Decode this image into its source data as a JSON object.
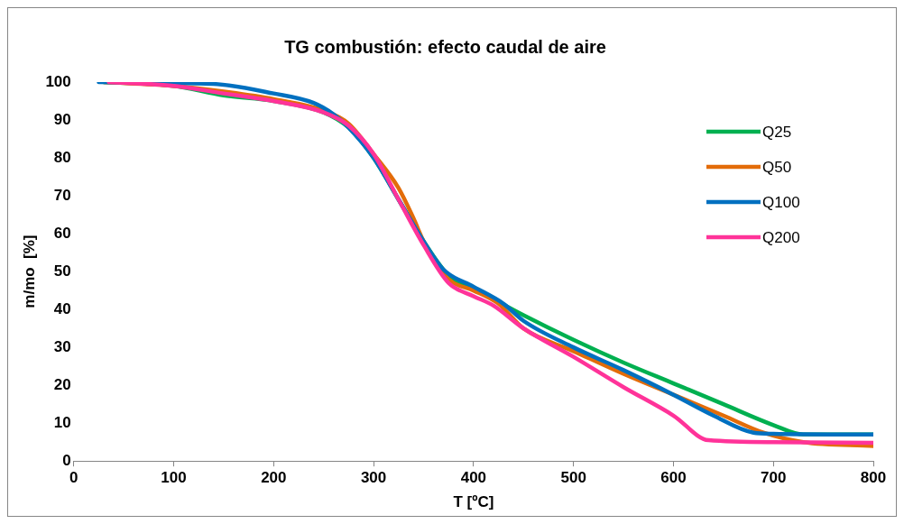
{
  "chart_data": {
    "type": "line",
    "title": "TG combustión: efecto caudal de aire",
    "xlabel": "T [ºC]",
    "ylabel": "m/mo  [%]",
    "xlim": [
      0,
      800
    ],
    "xticks": [
      0,
      100,
      200,
      300,
      400,
      500,
      600,
      700,
      800
    ],
    "ylim": [
      0,
      100
    ],
    "yticks": [
      0,
      10,
      20,
      30,
      40,
      50,
      60,
      70,
      80,
      90,
      100
    ],
    "grid": false,
    "legend": "right",
    "marker": "none",
    "line_style": "solid",
    "series": [
      {
        "name": "Q25",
        "color": "#00b050",
        "x": [
          30,
          100,
          150,
          200,
          250,
          275,
          300,
          325,
          350,
          375,
          400,
          425,
          450,
          500,
          550,
          600,
          650,
          700,
          730,
          800
        ],
        "values": [
          100,
          99,
          96.5,
          95,
          92,
          88,
          80,
          69,
          58,
          49,
          45.5,
          42,
          38.5,
          32,
          26,
          20.5,
          15,
          9.5,
          7,
          7
        ]
      },
      {
        "name": "Q50",
        "color": "#e36c09",
        "x": [
          30,
          100,
          150,
          200,
          250,
          275,
          300,
          325,
          340,
          350,
          375,
          400,
          425,
          450,
          500,
          550,
          600,
          650,
          690,
          730,
          800
        ],
        "values": [
          100,
          99,
          97.5,
          95.5,
          92.5,
          89,
          81,
          72,
          64,
          58,
          48,
          45,
          41.5,
          35,
          29,
          23,
          17.5,
          12,
          7.5,
          5,
          4
        ]
      },
      {
        "name": "Q100",
        "color": "#0070c0",
        "x": [
          25,
          140,
          200,
          240,
          260,
          275,
          300,
          325,
          350,
          370,
          400,
          430,
          450,
          500,
          550,
          600,
          640,
          680,
          700,
          800
        ],
        "values": [
          100,
          99.5,
          97,
          94.5,
          91.5,
          88,
          80,
          69,
          58,
          50.5,
          46,
          41.5,
          37,
          30,
          24,
          17.5,
          12,
          7.5,
          7.2,
          7
        ]
      },
      {
        "name": "Q200",
        "color": "#ff3399",
        "x": [
          35,
          100,
          150,
          200,
          250,
          275,
          300,
          325,
          350,
          375,
          400,
          420,
          450,
          500,
          550,
          600,
          635,
          700,
          800
        ],
        "values": [
          100,
          99,
          97,
          95,
          92,
          88.5,
          81,
          69,
          57,
          47,
          43.5,
          41,
          35,
          27.5,
          19.5,
          12,
          5.5,
          5,
          4.8
        ]
      }
    ]
  }
}
